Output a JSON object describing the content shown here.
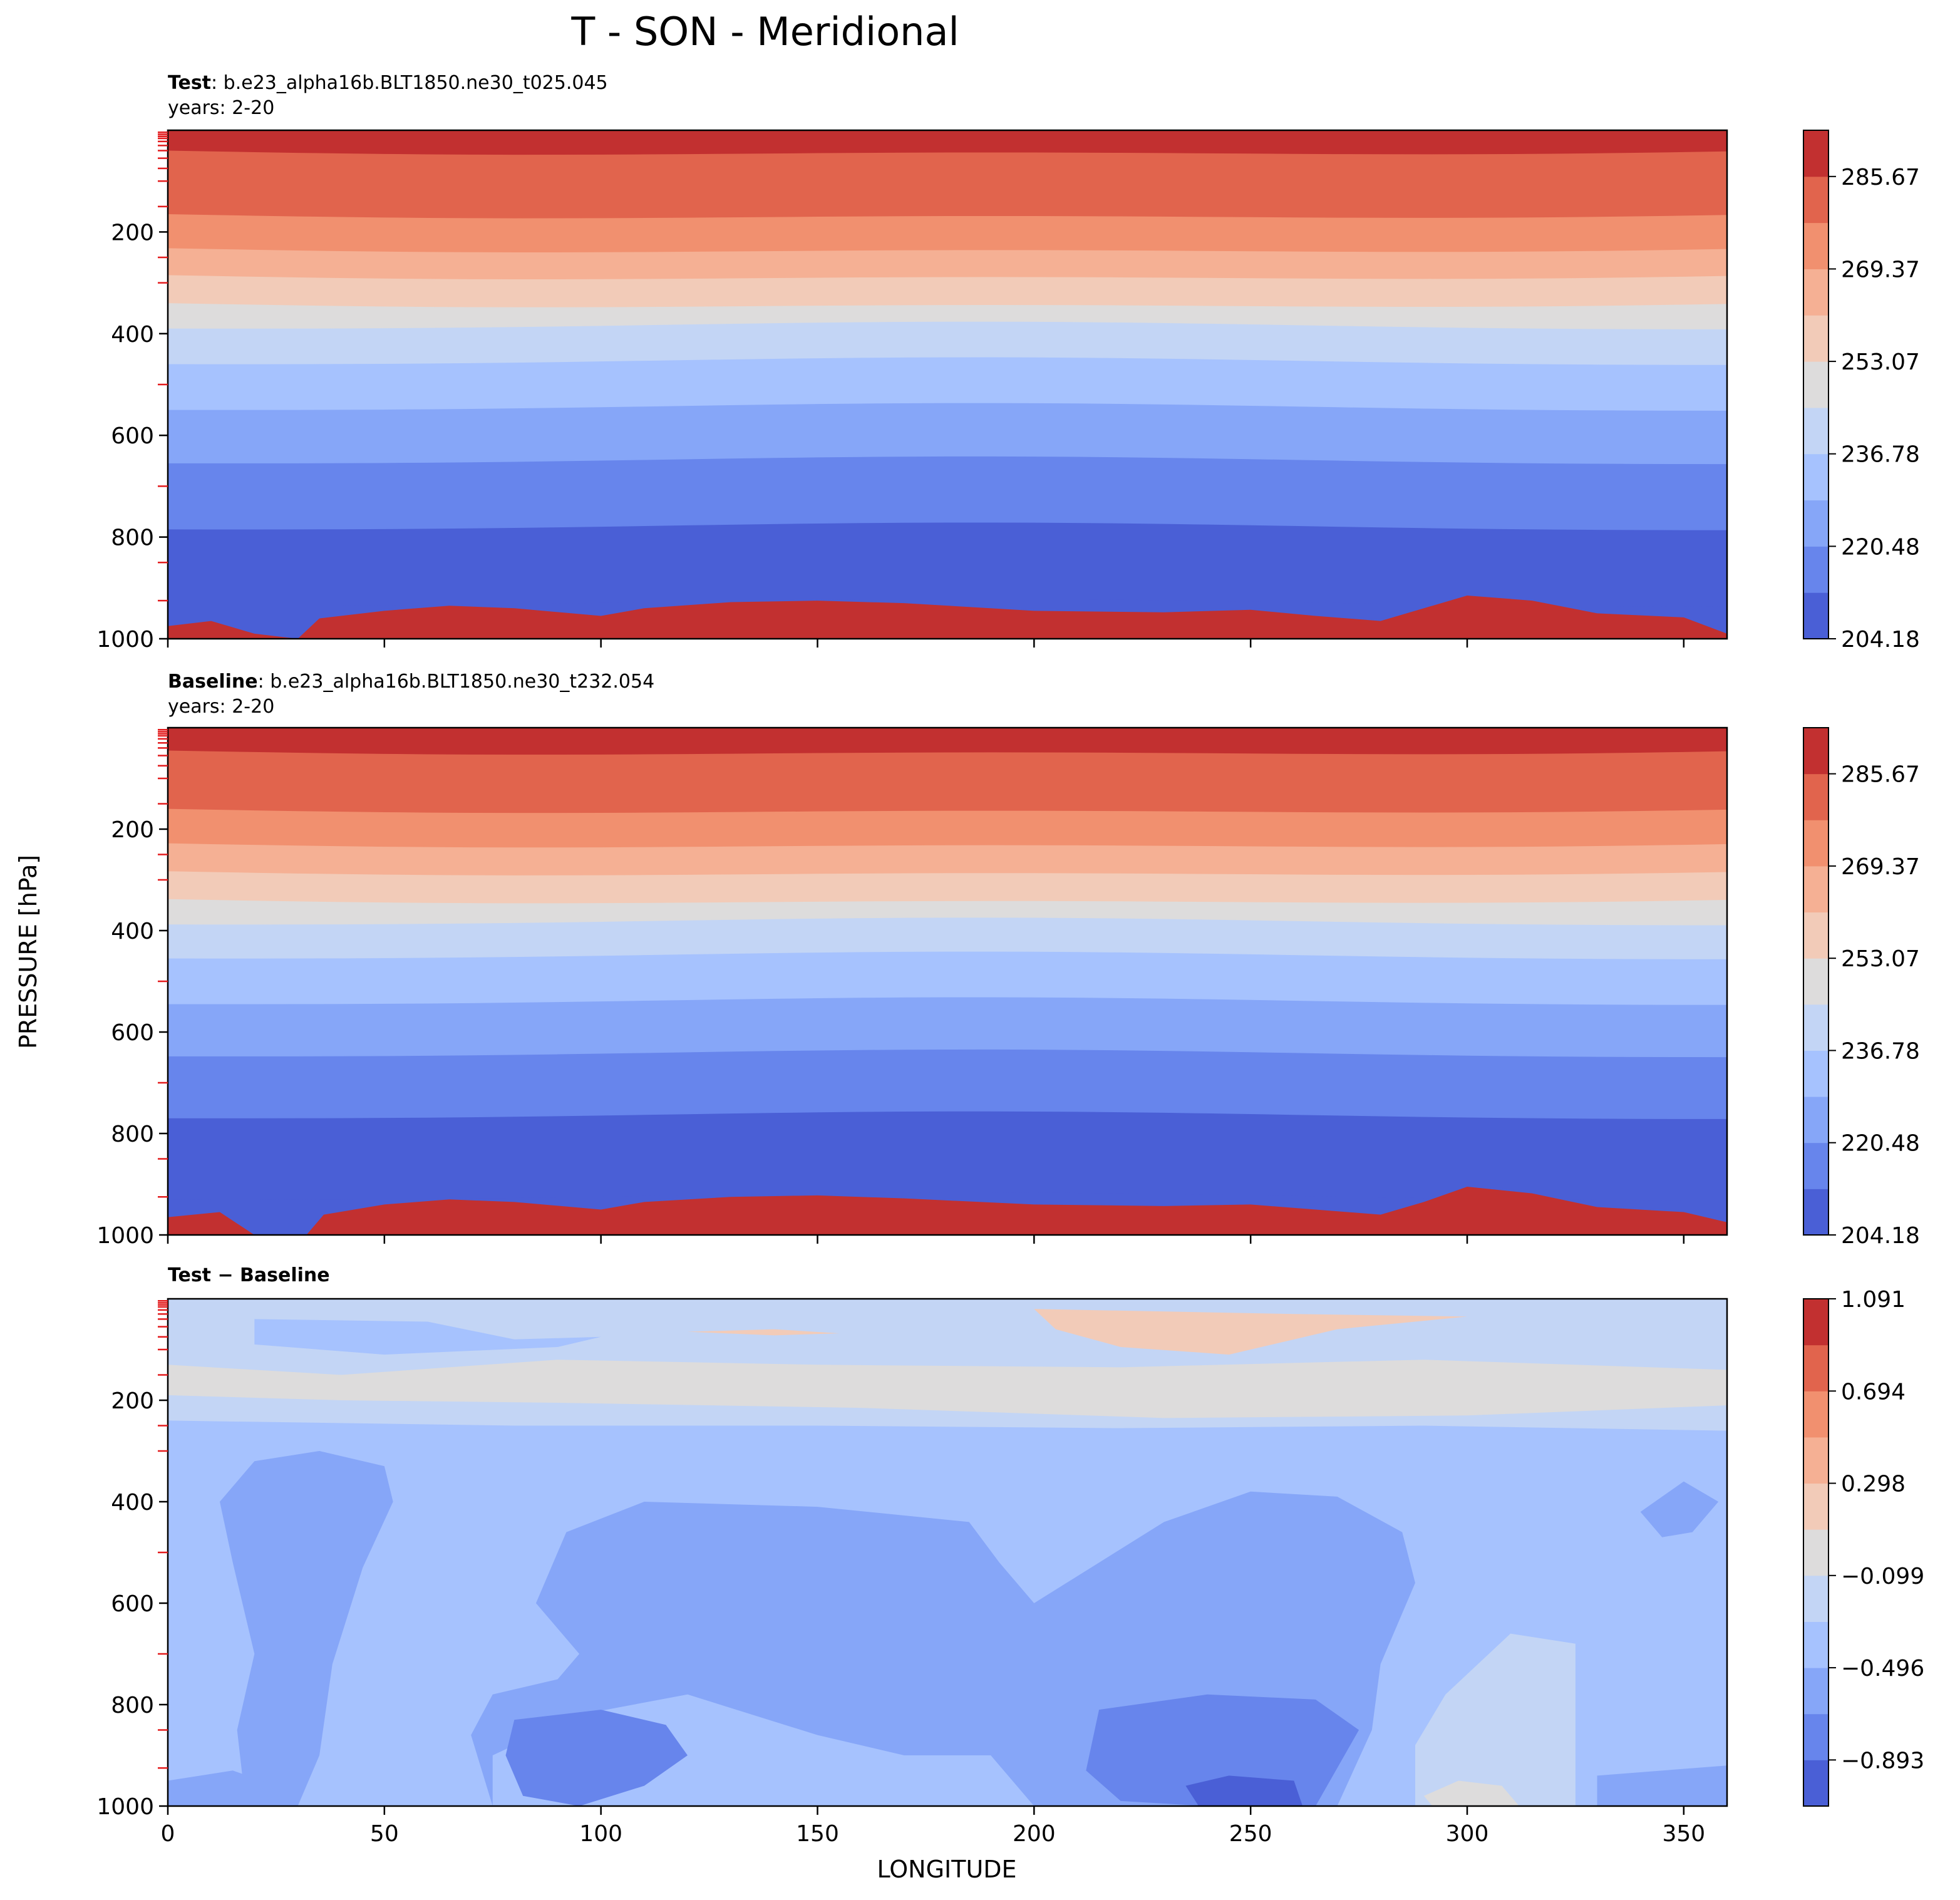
{
  "figure": {
    "title": "T - SON - Meridional",
    "ylabel": "PRESSURE [hPa]",
    "xlabel": "LONGITUDE"
  },
  "chart_data": [
    {
      "type": "contour",
      "panel": "test",
      "label_bold": "Test",
      "label_rest": ": b.e23_alpha16b.BLT1850.ne30_t025.045",
      "subtitle": "years: 2-20",
      "xlim": [
        0,
        360
      ],
      "ylim": [
        1000,
        0
      ],
      "xticks": [
        0,
        50,
        100,
        150,
        200,
        250,
        300,
        350
      ],
      "yticks": [
        200,
        400,
        600,
        800,
        1000
      ],
      "levels": [
        204.18,
        212.33,
        220.48,
        228.63,
        236.78,
        244.93,
        253.07,
        261.22,
        269.37,
        277.52,
        285.67,
        293.82
      ],
      "colorbar_ticks": [
        "204.18",
        "220.48",
        "236.78",
        "253.07",
        "269.37",
        "285.67"
      ],
      "colors": [
        "#4a5fd6",
        "#6785ec",
        "#86a6f8",
        "#a6c2fe",
        "#c3d5f5",
        "#dddcdc",
        "#f2cbb8",
        "#f5b094",
        "#f1906f",
        "#e1644d",
        "#c23030"
      ],
      "band_tops_hpa": [
        0,
        40,
        165,
        232,
        285,
        340,
        390,
        460,
        550,
        655,
        785,
        935
      ],
      "surface_band_top_hpa": [
        [
          0,
          975
        ],
        [
          10,
          965
        ],
        [
          20,
          990
        ],
        [
          30,
          1000
        ],
        [
          35,
          960
        ],
        [
          50,
          945
        ],
        [
          65,
          935
        ],
        [
          80,
          940
        ],
        [
          100,
          955
        ],
        [
          110,
          940
        ],
        [
          130,
          928
        ],
        [
          150,
          925
        ],
        [
          170,
          930
        ],
        [
          200,
          945
        ],
        [
          230,
          948
        ],
        [
          250,
          943
        ],
        [
          265,
          955
        ],
        [
          280,
          965
        ],
        [
          290,
          940
        ],
        [
          300,
          915
        ],
        [
          315,
          925
        ],
        [
          330,
          950
        ],
        [
          350,
          958
        ],
        [
          360,
          990
        ]
      ]
    },
    {
      "type": "contour",
      "panel": "baseline",
      "label_bold": "Baseline",
      "label_rest": ": b.e23_alpha16b.BLT1850.ne30_t232.054",
      "subtitle": "years: 2-20",
      "xlim": [
        0,
        360
      ],
      "ylim": [
        1000,
        0
      ],
      "xticks": [
        0,
        50,
        100,
        150,
        200,
        250,
        300,
        350
      ],
      "yticks": [
        200,
        400,
        600,
        800,
        1000
      ],
      "levels": [
        204.18,
        212.33,
        220.48,
        228.63,
        236.78,
        244.93,
        253.07,
        261.22,
        269.37,
        277.52,
        285.67,
        293.82
      ],
      "colorbar_ticks": [
        "204.18",
        "220.48",
        "236.78",
        "253.07",
        "269.37",
        "285.67"
      ],
      "colors": [
        "#4a5fd6",
        "#6785ec",
        "#86a6f8",
        "#a6c2fe",
        "#c3d5f5",
        "#dddcdc",
        "#f2cbb8",
        "#f5b094",
        "#f1906f",
        "#e1644d",
        "#c23030"
      ],
      "band_tops_hpa": [
        0,
        45,
        160,
        228,
        283,
        338,
        388,
        455,
        545,
        648,
        770,
        930
      ],
      "surface_band_top_hpa": [
        [
          0,
          965
        ],
        [
          12,
          955
        ],
        [
          20,
          1000
        ],
        [
          32,
          1000
        ],
        [
          36,
          960
        ],
        [
          50,
          940
        ],
        [
          65,
          930
        ],
        [
          80,
          935
        ],
        [
          100,
          950
        ],
        [
          110,
          935
        ],
        [
          130,
          925
        ],
        [
          150,
          922
        ],
        [
          170,
          928
        ],
        [
          200,
          940
        ],
        [
          230,
          943
        ],
        [
          250,
          940
        ],
        [
          265,
          950
        ],
        [
          280,
          960
        ],
        [
          290,
          935
        ],
        [
          300,
          905
        ],
        [
          315,
          918
        ],
        [
          330,
          945
        ],
        [
          350,
          955
        ],
        [
          360,
          975
        ]
      ]
    },
    {
      "type": "contour",
      "panel": "difference",
      "label_bold": "Test − Baseline",
      "xlim": [
        0,
        360
      ],
      "ylim": [
        1000,
        0
      ],
      "xticks": [
        0,
        50,
        100,
        150,
        200,
        250,
        300,
        350
      ],
      "yticks": [
        200,
        400,
        600,
        800,
        1000
      ],
      "levels": [
        -1.091,
        -0.893,
        -0.694,
        -0.496,
        -0.298,
        -0.099,
        0.099,
        0.298,
        0.496,
        0.694,
        0.893,
        1.091
      ],
      "colorbar_ticks": [
        "−0.893",
        "−0.496",
        "−0.099",
        "0.298",
        "0.694",
        "1.091"
      ],
      "colors": [
        "#4a5fd6",
        "#6785ec",
        "#86a6f8",
        "#a6c2fe",
        "#c3d5f5",
        "#dddcdc",
        "#f2cbb8",
        "#f5b094",
        "#f1906f",
        "#e1644d",
        "#c23030"
      ],
      "background_level_index": 3,
      "regions": [
        {
          "level": 4,
          "points": [
            [
              0,
              0
            ],
            [
              360,
              0
            ],
            [
              360,
              260
            ],
            [
              290,
              250
            ],
            [
              220,
              255
            ],
            [
              150,
              250
            ],
            [
              80,
              250
            ],
            [
              0,
              240
            ]
          ]
        },
        {
          "level": 5,
          "points": [
            [
              0,
              130
            ],
            [
              40,
              150
            ],
            [
              90,
              120
            ],
            [
              150,
              130
            ],
            [
              220,
              135
            ],
            [
              290,
              120
            ],
            [
              360,
              140
            ],
            [
              360,
              210
            ],
            [
              300,
              230
            ],
            [
              230,
              235
            ],
            [
              160,
              215
            ],
            [
              90,
              205
            ],
            [
              40,
              200
            ],
            [
              0,
              190
            ]
          ]
        },
        {
          "level": 6,
          "points": [
            [
              200,
              20
            ],
            [
              260,
              30
            ],
            [
              300,
              35
            ],
            [
              270,
              60
            ],
            [
              245,
              110
            ],
            [
              220,
              95
            ],
            [
              205,
              60
            ]
          ]
        },
        {
          "level": 6,
          "points": [
            [
              120,
              65
            ],
            [
              140,
              60
            ],
            [
              155,
              68
            ],
            [
              140,
              72
            ]
          ]
        },
        {
          "level": 3,
          "points": [
            [
              20,
              40
            ],
            [
              60,
              45
            ],
            [
              80,
              80
            ],
            [
              100,
              75
            ],
            [
              90,
              95
            ],
            [
              50,
              110
            ],
            [
              20,
              90
            ]
          ]
        },
        {
          "level": 2,
          "points": [
            [
              12,
              400
            ],
            [
              20,
              320
            ],
            [
              35,
              300
            ],
            [
              50,
              330
            ],
            [
              52,
              400
            ],
            [
              45,
              530
            ],
            [
              38,
              720
            ],
            [
              35,
              900
            ],
            [
              30,
              1000
            ],
            [
              18,
              1000
            ],
            [
              16,
              850
            ],
            [
              20,
              700
            ],
            [
              15,
              520
            ]
          ]
        },
        {
          "level": 2,
          "points": [
            [
              85,
              600
            ],
            [
              92,
              460
            ],
            [
              110,
              400
            ],
            [
              150,
              410
            ],
            [
              185,
              440
            ],
            [
              192,
              520
            ],
            [
              200,
              600
            ],
            [
              215,
              520
            ],
            [
              230,
              440
            ],
            [
              250,
              380
            ],
            [
              270,
              390
            ],
            [
              285,
              460
            ],
            [
              288,
              560
            ],
            [
              280,
              720
            ],
            [
              278,
              850
            ],
            [
              270,
              1000
            ],
            [
              200,
              1000
            ],
            [
              190,
              900
            ],
            [
              170,
              900
            ],
            [
              150,
              860
            ],
            [
              120,
              780
            ],
            [
              95,
              820
            ],
            [
              75,
              900
            ],
            [
              75,
              1000
            ],
            [
              70,
              860
            ],
            [
              75,
              780
            ],
            [
              90,
              750
            ],
            [
              95,
              700
            ]
          ]
        },
        {
          "level": 1,
          "points": [
            [
              215,
              810
            ],
            [
              240,
              780
            ],
            [
              265,
              790
            ],
            [
              275,
              850
            ],
            [
              265,
              1000
            ],
            [
              240,
              1000
            ],
            [
              220,
              990
            ],
            [
              212,
              930
            ]
          ]
        },
        {
          "level": 1,
          "points": [
            [
              80,
              830
            ],
            [
              100,
              810
            ],
            [
              115,
              840
            ],
            [
              120,
              900
            ],
            [
              110,
              960
            ],
            [
              95,
              1000
            ],
            [
              82,
              980
            ],
            [
              78,
              900
            ]
          ]
        },
        {
          "level": 0,
          "points": [
            [
              235,
              960
            ],
            [
              245,
              940
            ],
            [
              260,
              950
            ],
            [
              262,
              1000
            ],
            [
              238,
              1000
            ]
          ]
        },
        {
          "level": 4,
          "points": [
            [
              288,
              880
            ],
            [
              295,
              780
            ],
            [
              310,
              660
            ],
            [
              325,
              680
            ],
            [
              325,
              1000
            ],
            [
              288,
              1000
            ]
          ]
        },
        {
          "level": 5,
          "points": [
            [
              290,
              980
            ],
            [
              298,
              950
            ],
            [
              308,
              960
            ],
            [
              312,
              1000
            ],
            [
              292,
              1000
            ]
          ]
        },
        {
          "level": 2,
          "points": [
            [
              340,
              420
            ],
            [
              350,
              360
            ],
            [
              358,
              400
            ],
            [
              352,
              460
            ],
            [
              345,
              470
            ]
          ]
        },
        {
          "level": 2,
          "points": [
            [
              330,
              940
            ],
            [
              360,
              920
            ],
            [
              360,
              1000
            ],
            [
              330,
              1000
            ]
          ]
        },
        {
          "level": 2,
          "points": [
            [
              0,
              950
            ],
            [
              15,
              930
            ],
            [
              25,
              960
            ],
            [
              20,
              1000
            ],
            [
              0,
              1000
            ]
          ]
        }
      ]
    }
  ]
}
